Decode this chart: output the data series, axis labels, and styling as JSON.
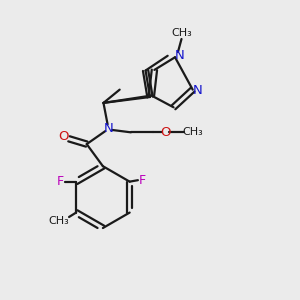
{
  "bg_color": "#ebebeb",
  "bond_color": "#1a1a1a",
  "N_color": "#1414cc",
  "O_color": "#cc1414",
  "F_color": "#bb00bb",
  "line_width": 1.6,
  "figsize": [
    3.0,
    3.0
  ],
  "dpi": 100,
  "xlim": [
    0,
    10
  ],
  "ylim": [
    0,
    10
  ]
}
